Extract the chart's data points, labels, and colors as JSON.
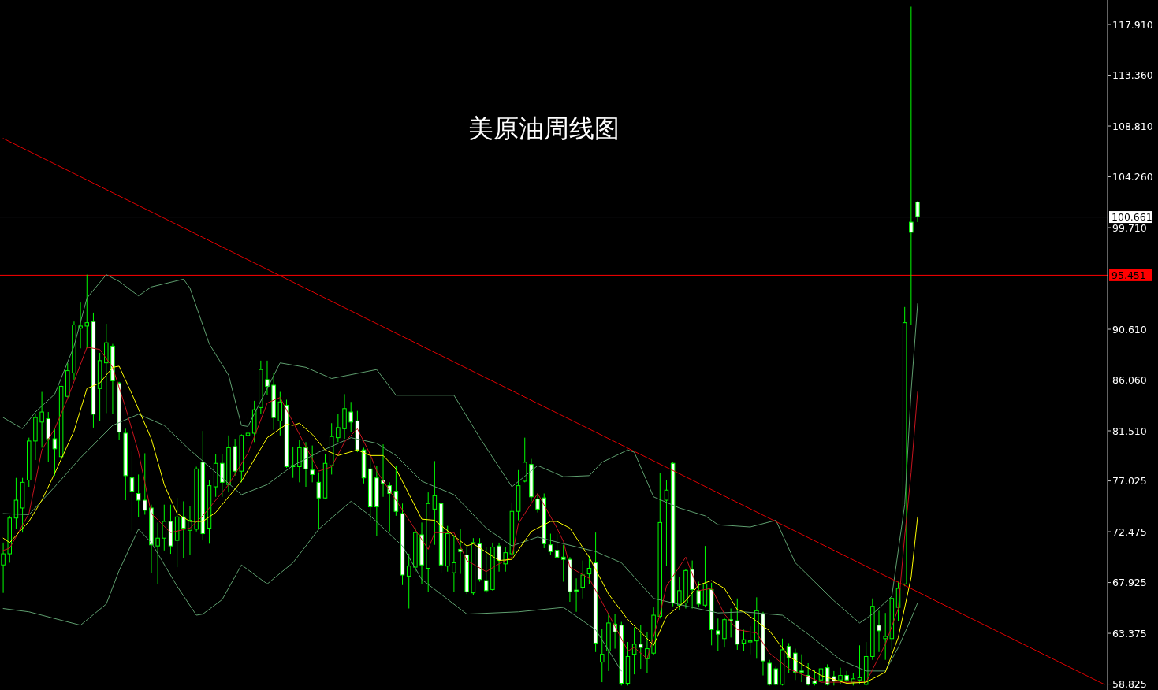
{
  "chart_data": {
    "type": "candlestick",
    "title": "美原油周线图",
    "color": "#00ff00",
    "categories": [
      null,
      null,
      null,
      null,
      null,
      null,
      null,
      null,
      null,
      null,
      null,
      null,
      null,
      null,
      null,
      null,
      null,
      null,
      null,
      null,
      null,
      null,
      null,
      null,
      null,
      null,
      null,
      null,
      null,
      null,
      null,
      null,
      null,
      null,
      null,
      null,
      null,
      null,
      null,
      null,
      null,
      null,
      null,
      null,
      null,
      null,
      null,
      null,
      null,
      null,
      null,
      null,
      null,
      null,
      null,
      null,
      null,
      null,
      null,
      null,
      null,
      null,
      null,
      null,
      null,
      null,
      null,
      null,
      null,
      null,
      null,
      null,
      null,
      null,
      null,
      null,
      null,
      null,
      null,
      null,
      null,
      null,
      null,
      null,
      null,
      null,
      null,
      null,
      null,
      null,
      null,
      null,
      null,
      null,
      null,
      null,
      null,
      null,
      null,
      null,
      null,
      null,
      null,
      null,
      null,
      null,
      null,
      null,
      null,
      null,
      null,
      null,
      null,
      null,
      null,
      null,
      null,
      null,
      null,
      null,
      null,
      null,
      null,
      null,
      null,
      null,
      null,
      null,
      null,
      null,
      null,
      null,
      null,
      null,
      null,
      null,
      null,
      null,
      null,
      null,
      null,
      null,
      null,
      null,
      null,
      null,
      null,
      null,
      null,
      null,
      null,
      null,
      null,
      null,
      null,
      null,
      null,
      null,
      null,
      null,
      null,
      null,
      null,
      null,
      null,
      null,
      null,
      null,
      null,
      null,
      null,
      null
    ],
    "ohlc": [
      [
        69.5,
        71.5,
        67.0,
        70.5
      ],
      [
        70.5,
        73.9,
        69.7,
        73.7
      ],
      [
        73.7,
        77.3,
        72.7,
        75.3
      ],
      [
        74.6,
        77.3,
        72.4,
        76.9
      ],
      [
        77.1,
        80.9,
        76.5,
        80.6
      ],
      [
        80.6,
        83.0,
        78.9,
        82.7
      ],
      [
        82.3,
        85.0,
        80.0,
        83.2
      ],
      [
        82.6,
        83.2,
        78.7,
        80.8
      ],
      [
        80.8,
        81.7,
        77.5,
        79.9
      ],
      [
        79.2,
        85.7,
        78.9,
        85.5
      ],
      [
        84.6,
        87.6,
        84.5,
        86.9
      ],
      [
        86.7,
        91.3,
        86.1,
        91.0
      ],
      [
        90.7,
        93.0,
        88.9,
        90.9
      ],
      [
        90.9,
        95.5,
        88.9,
        91.2
      ],
      [
        91.3,
        92.1,
        81.8,
        83.0
      ],
      [
        85.3,
        88.5,
        82.4,
        87.8
      ],
      [
        87.6,
        91.1,
        83.1,
        89.4
      ],
      [
        89.1,
        89.3,
        83.0,
        86.0
      ],
      [
        85.8,
        85.9,
        80.7,
        81.4
      ],
      [
        81.3,
        81.7,
        75.3,
        77.5
      ],
      [
        77.3,
        79.7,
        72.5,
        76.1
      ],
      [
        75.9,
        77.6,
        73.8,
        75.3
      ],
      [
        75.3,
        79.5,
        74.0,
        74.4
      ],
      [
        74.6,
        74.9,
        68.8,
        71.3
      ],
      [
        71.2,
        73.3,
        67.8,
        71.9
      ],
      [
        71.9,
        74.9,
        70.8,
        73.4
      ],
      [
        73.4,
        74.9,
        70.5,
        71.2
      ],
      [
        71.7,
        75.5,
        69.3,
        73.8
      ],
      [
        73.8,
        75.2,
        70.1,
        72.8
      ],
      [
        72.6,
        74.8,
        70.4,
        73.5
      ],
      [
        72.7,
        78.3,
        72.5,
        78.1
      ],
      [
        78.7,
        81.5,
        71.7,
        72.3
      ],
      [
        72.8,
        77.1,
        71.4,
        76.6
      ],
      [
        76.5,
        79.4,
        75.6,
        78.6
      ],
      [
        78.6,
        79.4,
        75.6,
        76.9
      ],
      [
        76.7,
        81.1,
        76.0,
        80.0
      ],
      [
        80.1,
        80.8,
        77.5,
        77.9
      ],
      [
        77.9,
        81.2,
        76.9,
        81.1
      ],
      [
        81.1,
        82.8,
        80.8,
        81.3
      ],
      [
        81.3,
        84.2,
        80.5,
        83.4
      ],
      [
        83.6,
        87.8,
        83.0,
        87.0
      ],
      [
        86.1,
        87.8,
        84.7,
        85.5
      ],
      [
        85.6,
        86.7,
        81.6,
        82.7
      ],
      [
        82.4,
        85.0,
        81.1,
        84.1
      ],
      [
        83.8,
        84.3,
        78.2,
        78.3
      ],
      [
        78.4,
        80.1,
        77.3,
        78.3
      ],
      [
        78.3,
        80.7,
        76.9,
        80.0
      ],
      [
        80.0,
        80.5,
        76.5,
        78.1
      ],
      [
        78.0,
        80.2,
        76.9,
        77.6
      ],
      [
        76.9,
        77.8,
        72.7,
        75.5
      ],
      [
        75.5,
        79.4,
        75.4,
        78.6
      ],
      [
        78.4,
        82.2,
        77.6,
        81.0
      ],
      [
        80.9,
        83.0,
        80.5,
        81.8
      ],
      [
        81.7,
        84.8,
        80.8,
        83.5
      ],
      [
        83.2,
        84.1,
        81.4,
        82.3
      ],
      [
        82.4,
        83.3,
        79.6,
        79.8
      ],
      [
        79.8,
        80.0,
        76.8,
        77.3
      ],
      [
        78.1,
        79.2,
        73.5,
        74.7
      ],
      [
        77.3,
        78.4,
        72.1,
        74.7
      ],
      [
        77.1,
        80.3,
        75.6,
        76.8
      ],
      [
        76.6,
        76.9,
        72.5,
        75.9
      ],
      [
        76.1,
        78.4,
        73.9,
        74.3
      ],
      [
        74.1,
        75.0,
        67.7,
        68.6
      ],
      [
        68.5,
        70.5,
        65.6,
        69.4
      ],
      [
        69.3,
        72.8,
        68.9,
        72.4
      ],
      [
        72.2,
        73.3,
        67.8,
        69.5
      ],
      [
        69.2,
        76.0,
        67.1,
        75.0
      ],
      [
        74.5,
        78.8,
        71.3,
        75.7
      ],
      [
        75.0,
        75.1,
        68.8,
        69.5
      ],
      [
        69.4,
        73.0,
        68.9,
        72.3
      ],
      [
        68.8,
        72.1,
        67.1,
        69.7
      ],
      [
        70.9,
        72.7,
        68.7,
        70.7
      ],
      [
        70.4,
        71.1,
        66.9,
        67.1
      ],
      [
        67.0,
        71.9,
        66.8,
        71.5
      ],
      [
        71.4,
        71.9,
        68.0,
        68.2
      ],
      [
        68.1,
        71.1,
        67.0,
        67.2
      ],
      [
        67.3,
        71.5,
        67.2,
        71.1
      ],
      [
        71.2,
        71.5,
        68.9,
        69.9
      ],
      [
        69.6,
        71.1,
        68.9,
        70.6
      ],
      [
        70.5,
        75.1,
        70.3,
        74.3
      ],
      [
        74.3,
        78.0,
        73.5,
        76.6
      ],
      [
        77.0,
        80.9,
        76.9,
        78.7
      ],
      [
        78.5,
        79.0,
        75.2,
        75.6
      ],
      [
        75.4,
        75.9,
        74.2,
        74.5
      ],
      [
        75.5,
        75.9,
        71.0,
        71.4
      ],
      [
        71.3,
        72.3,
        70.4,
        70.7
      ],
      [
        70.8,
        72.3,
        70.1,
        70.2
      ],
      [
        70.2,
        71.3,
        68.0,
        70.0
      ],
      [
        70.0,
        70.2,
        66.2,
        67.1
      ],
      [
        67.25,
        68.3,
        65.3,
        67.15
      ],
      [
        67.5,
        69.9,
        66.5,
        68.6
      ],
      [
        68.7,
        70.3,
        67.8,
        69.2
      ],
      [
        69.7,
        72.4,
        61.7,
        62.5
      ],
      [
        60.8,
        63.8,
        59.0,
        61.5
      ],
      [
        61.8,
        65.2,
        60.0,
        64.3
      ],
      [
        64.2,
        65.1,
        62.0,
        63.5
      ],
      [
        64.1,
        64.4,
        58.7,
        58.9
      ],
      [
        58.9,
        62.6,
        58.7,
        61.3
      ],
      [
        61.5,
        63.9,
        59.7,
        62.4
      ],
      [
        62.4,
        64.1,
        60.2,
        62.1
      ],
      [
        61.1,
        63.5,
        59.8,
        62.0
      ],
      [
        61.6,
        65.7,
        61.4,
        65.0
      ],
      [
        64.9,
        77.7,
        64.7,
        73.3
      ],
      [
        75.3,
        77.1,
        69.4,
        76.2
      ],
      [
        78.6,
        78.7,
        65.8,
        66.1
      ],
      [
        65.9,
        68.4,
        65.5,
        67.2
      ],
      [
        66.1,
        69.1,
        65.6,
        69.0
      ],
      [
        69.1,
        69.9,
        65.6,
        67.3
      ],
      [
        67.2,
        68.0,
        65.7,
        66.0
      ],
      [
        65.9,
        71.2,
        65.7,
        67.8
      ],
      [
        67.3,
        67.9,
        62.3,
        63.7
      ],
      [
        63.6,
        64.7,
        61.8,
        63.3
      ],
      [
        62.9,
        64.8,
        62.1,
        64.6
      ],
      [
        64.6,
        65.6,
        63.0,
        64.5
      ],
      [
        64.5,
        66.5,
        61.9,
        62.4
      ],
      [
        62.5,
        63.7,
        61.8,
        62.8
      ],
      [
        62.6,
        64.0,
        61.5,
        62.7
      ],
      [
        62.7,
        66.6,
        61.1,
        65.4
      ],
      [
        65.1,
        65.3,
        59.6,
        60.9
      ],
      [
        60.7,
        61.0,
        58.7,
        58.8
      ],
      [
        60.2,
        60.4,
        58.7,
        58.8
      ],
      [
        58.8,
        62.9,
        58.7,
        61.9
      ],
      [
        62.2,
        62.5,
        59.8,
        61.2
      ],
      [
        61.6,
        62.0,
        59.2,
        59.9
      ],
      [
        60.0,
        61.5,
        59.0,
        59.9
      ],
      [
        59.6,
        60.7,
        58.7,
        58.8
      ],
      [
        59.1,
        60.1,
        58.7,
        58.9
      ],
      [
        59.2,
        61.0,
        58.8,
        60.2
      ],
      [
        60.3,
        60.6,
        58.7,
        58.8
      ],
      [
        59.5,
        60.0,
        58.7,
        59.1
      ],
      [
        59.2,
        60.3,
        58.8,
        59.6
      ],
      [
        59.6,
        60.0,
        58.8,
        59.2
      ],
      [
        59.0,
        59.8,
        58.7,
        59.3
      ],
      [
        59.2,
        62.3,
        58.8,
        59.4
      ],
      [
        58.8,
        62.6,
        58.7,
        61.3
      ],
      [
        61.3,
        66.5,
        61.0,
        65.8
      ],
      [
        64.1,
        65.4,
        61.7,
        63.6
      ],
      [
        62.9,
        65.2,
        61.0,
        63.1
      ],
      [
        62.9,
        66.7,
        61.9,
        66.5
      ],
      [
        65.7,
        68.0,
        64.5,
        67.4
      ],
      [
        67.8,
        92.6,
        67.6,
        91.2
      ],
      [
        100.2,
        119.5,
        91.0,
        99.3
      ],
      [
        102.0,
        102.1,
        100.2,
        100.7
      ],
      null,
      null,
      null,
      null,
      null,
      null,
      null,
      null,
      null,
      null,
      null,
      null,
      null,
      null,
      null,
      null,
      null,
      null,
      null,
      null,
      null,
      null,
      null,
      null,
      null,
      null,
      null,
      null,
      null
    ],
    "ylim": [
      58.3,
      120.1
    ],
    "yticks": [
      {
        "value": 58.825,
        "label": "58.825"
      },
      {
        "value": 63.375,
        "label": "63.375"
      },
      {
        "value": 67.925,
        "label": "67.925"
      },
      {
        "value": 72.475,
        "label": "72.475"
      },
      {
        "value": 77.025,
        "label": "77.025"
      },
      {
        "value": 81.51,
        "label": "81.510"
      },
      {
        "value": 86.06,
        "label": "86.060"
      },
      {
        "value": 90.61,
        "label": "90.610"
      },
      {
        "value": 99.71,
        "label": "99.710"
      },
      {
        "value": 104.26,
        "label": "104.260"
      },
      {
        "value": 108.81,
        "label": "108.810"
      },
      {
        "value": 113.36,
        "label": "113.360"
      },
      {
        "value": 117.91,
        "label": "117.910"
      }
    ],
    "tick_labels": "y",
    "series": [
      {
        "type": "line",
        "color": "#5f9f6f",
        "values": [
          82.7,
          null,
          null,
          81.7,
          null,
          83.2,
          null,
          null,
          84.8,
          null,
          null,
          89.1,
          null,
          93.4,
          null,
          null,
          95.5,
          null,
          94.9,
          null,
          null,
          93.6,
          null,
          94.4,
          null,
          null,
          null,
          null,
          95.1,
          94.3,
          null,
          null,
          89.3,
          null,
          null,
          86.5,
          null,
          82.0,
          81.9,
          null,
          null,
          null,
          null,
          87.6,
          null,
          null,
          null,
          87.2,
          null,
          null,
          null,
          86.2,
          null,
          null,
          null,
          null,
          null,
          null,
          87.0,
          null,
          null,
          84.7,
          null,
          null,
          null,
          null,
          null,
          null,
          null,
          null,
          84.7,
          null,
          null,
          null,
          80.9,
          null,
          null,
          null,
          null,
          76.5,
          null,
          null,
          null,
          78.4,
          null,
          null,
          null,
          77.4,
          null,
          null,
          null,
          77.5,
          null,
          78.7,
          null,
          null,
          null,
          79.8,
          79.6,
          null,
          null,
          75.6,
          null,
          null,
          null,
          74.6,
          null,
          null,
          null,
          73.9,
          null,
          73.1,
          null,
          null,
          null,
          null,
          72.9,
          null,
          null,
          null,
          73.5,
          null,
          null,
          69.7,
          null,
          null,
          null,
          null,
          null,
          66.3,
          null,
          null,
          null,
          64.3,
          null,
          65.1,
          null,
          null,
          66.7,
          null,
          74.9,
          85.1,
          92.9,
          null,
          null,
          null,
          null,
          null,
          null,
          null,
          null,
          null,
          null,
          null,
          null,
          null,
          null,
          null,
          null,
          null,
          null,
          null,
          null,
          null,
          null,
          null,
          null,
          null,
          null,
          null,
          null,
          null
        ]
      },
      {
        "type": "line",
        "color": "#5f9f6f",
        "values": [
          74.1,
          null,
          null,
          null,
          74.0,
          null,
          null,
          null,
          76.5,
          null,
          null,
          null,
          79.1,
          null,
          null,
          null,
          null,
          82.0,
          null,
          null,
          null,
          83.0,
          null,
          null,
          null,
          82.0,
          null,
          null,
          null,
          79.8,
          null,
          null,
          null,
          null,
          null,
          null,
          null,
          75.8,
          null,
          null,
          null,
          76.7,
          null,
          null,
          null,
          78.4,
          null,
          null,
          null,
          79.6,
          null,
          null,
          null,
          null,
          80.9,
          null,
          null,
          null,
          80.4,
          null,
          null,
          79.3,
          null,
          null,
          null,
          77.0,
          null,
          null,
          null,
          null,
          75.8,
          null,
          null,
          null,
          null,
          72.8,
          null,
          null,
          null,
          71.2,
          null,
          null,
          null,
          72.0,
          null,
          null,
          null,
          71.4,
          null,
          null,
          null,
          null,
          70.7,
          null,
          null,
          null,
          69.7,
          null,
          null,
          null,
          null,
          66.5,
          null,
          null,
          null,
          null,
          null,
          65.7,
          null,
          null,
          null,
          65.2,
          null,
          null,
          null,
          65.3,
          null,
          null,
          null,
          null,
          null,
          65.0,
          null,
          null,
          null,
          63.3,
          null,
          null,
          null,
          null,
          61.0,
          null,
          null,
          null,
          60.0,
          null,
          null,
          60.0,
          null,
          62.1,
          null,
          64.7,
          66.1,
          null,
          null,
          null,
          null,
          null,
          null,
          null,
          null,
          null,
          null,
          null,
          null,
          null,
          null,
          null,
          null,
          null,
          null,
          null,
          null,
          null,
          null,
          null,
          null,
          null,
          null,
          null,
          null,
          null
        ]
      },
      {
        "type": "line",
        "color": "#5f9f6f",
        "values": [
          65.6,
          null,
          null,
          null,
          65.3,
          null,
          null,
          null,
          null,
          null,
          null,
          null,
          64.1,
          null,
          null,
          null,
          66.0,
          null,
          69.0,
          null,
          null,
          72.7,
          null,
          71.5,
          null,
          null,
          null,
          67.6,
          null,
          null,
          65.0,
          65.1,
          null,
          null,
          66.4,
          null,
          null,
          69.5,
          null,
          null,
          null,
          67.8,
          null,
          null,
          null,
          69.7,
          null,
          null,
          null,
          72.7,
          null,
          null,
          null,
          null,
          75.2,
          null,
          null,
          73.9,
          null,
          null,
          null,
          null,
          71.2,
          null,
          null,
          68.2,
          null,
          null,
          null,
          null,
          null,
          null,
          65.1,
          null,
          null,
          null,
          null,
          null,
          null,
          null,
          65.3,
          null,
          null,
          null,
          null,
          null,
          null,
          65.7,
          null,
          null,
          null,
          null,
          63.7,
          null,
          null,
          null,
          60.0,
          null,
          null,
          null,
          null,
          null,
          null,
          null,
          null,
          null,
          null,
          null,
          null,
          null,
          null,
          null,
          null,
          null,
          null,
          null,
          null,
          null,
          null,
          null,
          null,
          null,
          null,
          null,
          null,
          null,
          null,
          null,
          null,
          null,
          null,
          null,
          null,
          null,
          null,
          null,
          null,
          null,
          null,
          null,
          null,
          null,
          null,
          null,
          null,
          null,
          null,
          null,
          null,
          null,
          null,
          null,
          null,
          null,
          null,
          null,
          null,
          null,
          null,
          null,
          null,
          null,
          null,
          null,
          null,
          null,
          null,
          null,
          null,
          null,
          null,
          null
        ]
      },
      {
        "type": "line",
        "color": "#c8141e",
        "values": [
          70.8,
          71.0,
          null,
          null,
          74.1,
          null,
          79.8,
          null,
          81.7,
          null,
          84.4,
          null,
          null,
          89.0,
          null,
          88.8,
          null,
          87.2,
          null,
          83.6,
          null,
          79.6,
          null,
          74.1,
          null,
          null,
          72.4,
          null,
          null,
          72.8,
          null,
          73.9,
          null,
          null,
          null,
          76.7,
          null,
          null,
          79.5,
          null,
          null,
          84.0,
          null,
          84.5,
          null,
          null,
          81.2,
          null,
          null,
          77.9,
          null,
          78.3,
          null,
          80.5,
          null,
          81.7,
          null,
          79.4,
          77.9,
          null,
          null,
          75.3,
          null,
          null,
          null,
          null,
          70.9,
          72.4,
          null,
          null,
          72.4,
          null,
          69.9,
          null,
          null,
          68.9,
          null,
          69.6,
          null,
          70.2,
          73.2,
          null,
          null,
          75.9,
          null,
          null,
          72.8,
          71.6,
          69.3,
          null,
          null,
          68.3,
          null,
          null,
          65.1,
          null,
          null,
          61.8,
          62.1,
          null,
          61.1,
          null,
          65.1,
          67.6,
          null,
          null,
          70.2,
          null,
          67.2,
          null,
          67.4,
          null,
          65.1,
          null,
          63.7,
          63.6,
          null,
          63.4,
          null,
          61.6,
          null,
          null,
          60.2,
          null,
          null,
          null,
          null,
          59.0,
          null,
          null,
          null,
          null,
          null,
          null,
          59.0,
          null,
          null,
          62.4,
          null,
          65.6,
          72.1,
          77.8,
          85.0,
          null,
          null,
          null,
          null,
          null,
          null,
          null,
          null,
          null,
          null,
          null,
          null,
          null,
          null,
          null,
          null,
          null,
          null,
          null,
          null,
          null,
          null,
          null,
          null,
          null,
          null,
          null,
          null,
          null
        ]
      },
      {
        "type": "line",
        "color": "#ffff00",
        "values": [
          71.9,
          71.5,
          null,
          null,
          73.4,
          null,
          75.3,
          null,
          77.7,
          null,
          null,
          81.5,
          null,
          85.3,
          null,
          85.8,
          null,
          87.2,
          87.3,
          null,
          84.8,
          null,
          null,
          80.8,
          null,
          76.7,
          null,
          74.1,
          null,
          73.4,
          null,
          73.4,
          null,
          74.2,
          null,
          null,
          null,
          77.0,
          null,
          null,
          null,
          80.9,
          null,
          null,
          82.1,
          82.0,
          82.2,
          null,
          81.2,
          null,
          79.8,
          null,
          79.3,
          null,
          null,
          79.8,
          null,
          79.3,
          null,
          79.3,
          null,
          78.1,
          null,
          null,
          null,
          73.6,
          null,
          73.5,
          null,
          null,
          72.1,
          null,
          71.2,
          71.4,
          null,
          null,
          null,
          69.9,
          null,
          70.0,
          null,
          null,
          72.5,
          null,
          null,
          73.4,
          73.4,
          null,
          72.8,
          null,
          null,
          70.2,
          null,
          null,
          66.9,
          null,
          null,
          64.6,
          null,
          63.5,
          null,
          62.3,
          null,
          64.9,
          null,
          null,
          66.3,
          null,
          67.7,
          null,
          68.1,
          null,
          67.4,
          null,
          65.5,
          65.3,
          null,
          null,
          null,
          63.6,
          null,
          null,
          61.3,
          null,
          null,
          null,
          null,
          59.6,
          null,
          null,
          null,
          58.9,
          null,
          null,
          59.0,
          null,
          null,
          59.9,
          null,
          63.0,
          null,
          68.4,
          73.8,
          null,
          null,
          null,
          null,
          null,
          null,
          null,
          null,
          null,
          null,
          null,
          null,
          null,
          null,
          null,
          null,
          null,
          null,
          null,
          null,
          null,
          null,
          null,
          null,
          null,
          null,
          null,
          null,
          null
        ]
      },
      {
        "type": "line",
        "color": "#e00000",
        "values": [
          107.7,
          null,
          null,
          null,
          null,
          null,
          null,
          null,
          null,
          null,
          null,
          null,
          null,
          null,
          null,
          null,
          null,
          null,
          null,
          null,
          null,
          null,
          null,
          null,
          null,
          null,
          null,
          null,
          null,
          null,
          null,
          null,
          null,
          null,
          null,
          null,
          null,
          null,
          null,
          null,
          null,
          null,
          null,
          null,
          null,
          null,
          null,
          null,
          null,
          null,
          null,
          null,
          null,
          null,
          null,
          null,
          null,
          null,
          null,
          null,
          null,
          null,
          null,
          null,
          null,
          null,
          null,
          null,
          null,
          null,
          null,
          null,
          null,
          null,
          null,
          null,
          null,
          null,
          null,
          null,
          null,
          null,
          null,
          null,
          null,
          null,
          null,
          null,
          null,
          null,
          null,
          null,
          null,
          null,
          null,
          null,
          null,
          null,
          null,
          null,
          null,
          null,
          null,
          null,
          null,
          null,
          null,
          null,
          null,
          null,
          null,
          null,
          null,
          null,
          null,
          null,
          null,
          null,
          null,
          null,
          null,
          null,
          null,
          null,
          null,
          null,
          null,
          null,
          null,
          null,
          null,
          null,
          null,
          null,
          null,
          null,
          null,
          null,
          null,
          null,
          null,
          null,
          null,
          null,
          null,
          null,
          null,
          null,
          null,
          null,
          null,
          null,
          null,
          null,
          null,
          null,
          null,
          null,
          null,
          null,
          null,
          null,
          null,
          null,
          null,
          null,
          null,
          null,
          null,
          null,
          null,
          58.8
        ]
      }
    ],
    "ref_lines": [
      {
        "axis": "y",
        "value": 100.661,
        "label": "100.661",
        "color": "#9aa4ae"
      },
      {
        "axis": "y",
        "value": 95.451,
        "label": "95.451",
        "color": "#ff0000"
      }
    ]
  }
}
